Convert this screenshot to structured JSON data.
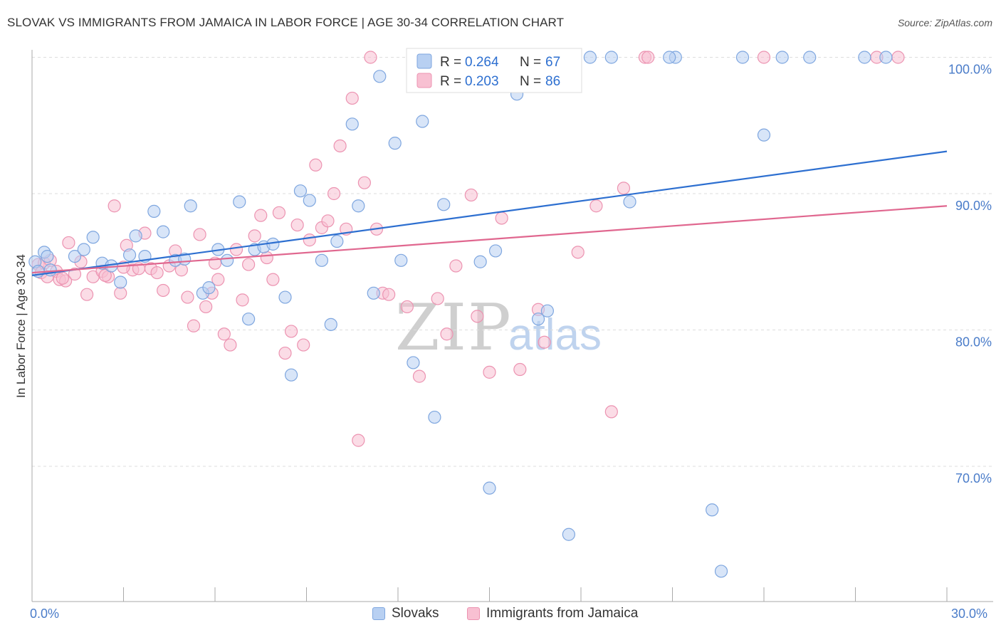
{
  "header": {
    "title": "SLOVAK VS IMMIGRANTS FROM JAMAICA IN LABOR FORCE | AGE 30-34 CORRELATION CHART",
    "source": "Source: ZipAtlas.com"
  },
  "watermark": {
    "zip": "ZIP",
    "atlas": "atlas"
  },
  "legend_top": [
    {
      "r_label": "R =",
      "r_value": "0.264",
      "n_label": "N =",
      "n_value": "67"
    },
    {
      "r_label": "R =",
      "r_value": "0.203",
      "n_label": "N =",
      "n_value": "86"
    }
  ],
  "legend_bottom": [
    "Slovaks",
    "Immigrants from Jamaica"
  ],
  "colors": {
    "slovaks_fill": "#b8d0f2",
    "slovaks_stroke": "#7ea6df",
    "slovaks_line": "#2d6fd0",
    "jamaica_fill": "#f8c0d2",
    "jamaica_stroke": "#ec93b1",
    "jamaica_line": "#e0678f",
    "tick_label": "#4a7cc9",
    "grid": "#dddddd"
  },
  "chart_data": {
    "type": "scatter",
    "title": "SLOVAK VS IMMIGRANTS FROM JAMAICA IN LABOR FORCE | AGE 30-34 CORRELATION CHART",
    "xlabel": "",
    "ylabel": "In Labor Force | Age 30-34",
    "xlim": [
      0,
      30
    ],
    "ylim": [
      60.5,
      101.5
    ],
    "x_tick_labels": [
      {
        "value": 0,
        "label": "0.0%"
      },
      {
        "value": 30,
        "label": "30.0%"
      }
    ],
    "y_tick_labels": [
      {
        "value": 70,
        "label": "70.0%"
      },
      {
        "value": 80,
        "label": "80.0%"
      },
      {
        "value": 90,
        "label": "90.0%"
      },
      {
        "value": 100,
        "label": "100.0%"
      }
    ],
    "grid": true,
    "legend_placement": "top-center",
    "series": [
      {
        "name": "Slovaks",
        "r": 0.264,
        "n": 67,
        "trend": {
          "x": [
            0,
            30
          ],
          "y": [
            84.0,
            93.1
          ]
        },
        "points": [
          [
            0.1,
            85.0
          ],
          [
            0.2,
            84.3
          ],
          [
            0.4,
            85.7
          ],
          [
            0.5,
            85.4
          ],
          [
            0.6,
            84.4
          ],
          [
            1.4,
            85.4
          ],
          [
            1.7,
            85.9
          ],
          [
            2.0,
            86.8
          ],
          [
            2.3,
            84.9
          ],
          [
            2.6,
            84.7
          ],
          [
            2.9,
            83.5
          ],
          [
            3.2,
            85.5
          ],
          [
            3.4,
            86.9
          ],
          [
            3.7,
            85.4
          ],
          [
            4.0,
            88.7
          ],
          [
            4.3,
            87.2
          ],
          [
            4.7,
            85.1
          ],
          [
            5.0,
            85.2
          ],
          [
            5.2,
            89.1
          ],
          [
            5.6,
            82.7
          ],
          [
            5.8,
            83.1
          ],
          [
            6.1,
            85.9
          ],
          [
            6.4,
            85.1
          ],
          [
            6.8,
            89.4
          ],
          [
            7.1,
            80.8
          ],
          [
            7.3,
            85.9
          ],
          [
            7.6,
            86.1
          ],
          [
            7.9,
            86.3
          ],
          [
            8.3,
            82.4
          ],
          [
            8.5,
            76.7
          ],
          [
            8.8,
            90.2
          ],
          [
            9.1,
            89.5
          ],
          [
            9.5,
            85.1
          ],
          [
            9.8,
            80.4
          ],
          [
            10.0,
            86.5
          ],
          [
            10.5,
            95.1
          ],
          [
            10.7,
            89.1
          ],
          [
            11.2,
            82.7
          ],
          [
            11.4,
            98.6
          ],
          [
            11.9,
            93.7
          ],
          [
            12.1,
            85.1
          ],
          [
            12.5,
            77.6
          ],
          [
            12.8,
            95.3
          ],
          [
            13.2,
            73.6
          ],
          [
            13.5,
            89.2
          ],
          [
            14.0,
            100.0
          ],
          [
            14.7,
            85.0
          ],
          [
            15.0,
            68.4
          ],
          [
            15.2,
            85.8
          ],
          [
            15.9,
            97.3
          ],
          [
            16.6,
            80.8
          ],
          [
            16.9,
            81.4
          ],
          [
            17.6,
            65.0
          ],
          [
            18.3,
            100.0
          ],
          [
            19.0,
            100.0
          ],
          [
            19.6,
            89.4
          ],
          [
            21.1,
            100.0
          ],
          [
            22.3,
            66.8
          ],
          [
            22.6,
            62.3
          ],
          [
            23.3,
            100.0
          ],
          [
            24.0,
            94.3
          ],
          [
            24.6,
            100.0
          ],
          [
            25.5,
            100.0
          ],
          [
            27.3,
            100.0
          ],
          [
            28.0,
            100.0
          ],
          [
            12.5,
            100.0
          ],
          [
            20.9,
            100.0
          ]
        ]
      },
      {
        "name": "Immigrants from Jamaica",
        "r": 0.203,
        "n": 86,
        "trend": {
          "x": [
            0,
            30
          ],
          "y": [
            84.2,
            89.1
          ]
        },
        "points": [
          [
            0.2,
            84.8
          ],
          [
            0.3,
            84.2
          ],
          [
            0.4,
            84.9
          ],
          [
            0.5,
            83.9
          ],
          [
            0.6,
            85.1
          ],
          [
            0.8,
            84.3
          ],
          [
            0.9,
            83.7
          ],
          [
            1.1,
            83.6
          ],
          [
            1.2,
            86.4
          ],
          [
            1.4,
            84.1
          ],
          [
            1.6,
            85.0
          ],
          [
            1.8,
            82.6
          ],
          [
            2.0,
            83.9
          ],
          [
            2.3,
            84.3
          ],
          [
            2.5,
            83.9
          ],
          [
            2.7,
            89.1
          ],
          [
            2.9,
            82.7
          ],
          [
            3.1,
            86.2
          ],
          [
            3.3,
            84.4
          ],
          [
            3.5,
            84.5
          ],
          [
            3.7,
            87.1
          ],
          [
            3.9,
            84.5
          ],
          [
            4.1,
            84.2
          ],
          [
            4.3,
            82.9
          ],
          [
            4.5,
            84.7
          ],
          [
            4.7,
            85.8
          ],
          [
            4.9,
            84.4
          ],
          [
            5.1,
            82.4
          ],
          [
            5.3,
            80.3
          ],
          [
            5.5,
            87.0
          ],
          [
            5.7,
            81.7
          ],
          [
            5.9,
            82.7
          ],
          [
            6.1,
            83.7
          ],
          [
            6.3,
            79.7
          ],
          [
            6.5,
            78.9
          ],
          [
            6.7,
            85.9
          ],
          [
            6.9,
            82.2
          ],
          [
            7.1,
            84.8
          ],
          [
            7.3,
            86.9
          ],
          [
            7.5,
            88.4
          ],
          [
            7.7,
            85.3
          ],
          [
            7.9,
            83.7
          ],
          [
            8.1,
            88.6
          ],
          [
            8.3,
            78.3
          ],
          [
            8.5,
            79.9
          ],
          [
            8.7,
            87.7
          ],
          [
            8.9,
            78.9
          ],
          [
            9.1,
            86.6
          ],
          [
            9.3,
            92.1
          ],
          [
            9.5,
            87.5
          ],
          [
            9.7,
            88.0
          ],
          [
            9.9,
            90.0
          ],
          [
            10.1,
            93.5
          ],
          [
            10.3,
            87.4
          ],
          [
            10.5,
            97.0
          ],
          [
            10.7,
            71.9
          ],
          [
            10.9,
            90.8
          ],
          [
            11.1,
            100.0
          ],
          [
            11.3,
            87.4
          ],
          [
            11.5,
            82.7
          ],
          [
            11.7,
            82.6
          ],
          [
            12.3,
            81.7
          ],
          [
            12.7,
            76.6
          ],
          [
            13.3,
            82.3
          ],
          [
            13.6,
            79.7
          ],
          [
            13.9,
            84.7
          ],
          [
            14.4,
            89.9
          ],
          [
            14.6,
            81.0
          ],
          [
            15.0,
            76.9
          ],
          [
            15.4,
            88.2
          ],
          [
            16.0,
            77.1
          ],
          [
            16.6,
            81.5
          ],
          [
            16.8,
            79.1
          ],
          [
            17.9,
            85.7
          ],
          [
            18.5,
            89.1
          ],
          [
            19.0,
            74.0
          ],
          [
            19.4,
            90.4
          ],
          [
            20.1,
            100.0
          ],
          [
            20.2,
            100.0
          ],
          [
            24.0,
            100.0
          ],
          [
            27.7,
            100.0
          ],
          [
            28.4,
            100.0
          ],
          [
            1.0,
            83.8
          ],
          [
            3.0,
            84.6
          ],
          [
            6.0,
            84.9
          ],
          [
            2.4,
            84.0
          ]
        ]
      }
    ]
  }
}
